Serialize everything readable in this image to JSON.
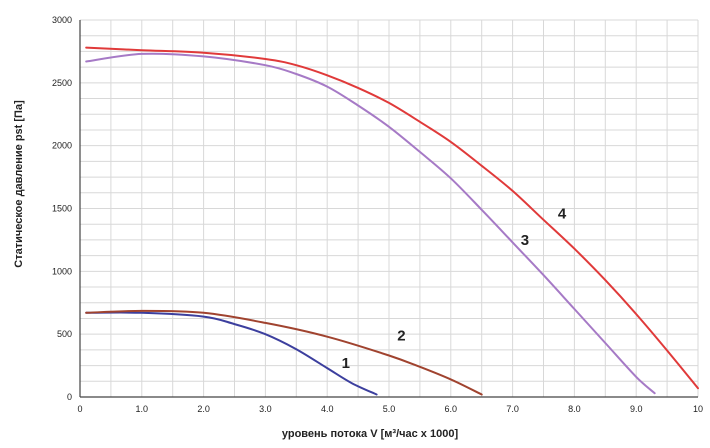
{
  "chart_data": {
    "type": "line",
    "xlabel": "уровень потока  V [м³/час х 1000]",
    "ylabel": "Статическое давление  pst [Па]",
    "xlim": [
      0,
      10
    ],
    "ylim": [
      0,
      3000
    ],
    "grid": true,
    "x_ticks": [
      "0",
      "1.0",
      "2.0",
      "3.0",
      "4.0",
      "5.0",
      "6.0",
      "7.0",
      "8.0",
      "9.0",
      "10"
    ],
    "y_ticks": [
      "0",
      "500",
      "1000",
      "1500",
      "2000",
      "2500",
      "3000"
    ],
    "series": [
      {
        "name": "1",
        "color": "#3c3f9e",
        "x": [
          0.1,
          1.0,
          2.0,
          2.5,
          3.0,
          3.5,
          4.0,
          4.4,
          4.8
        ],
        "y": [
          670,
          670,
          640,
          580,
          500,
          380,
          230,
          110,
          20
        ],
        "label_at": [
          4.3,
          230
        ]
      },
      {
        "name": "2",
        "color": "#a0432f",
        "x": [
          0.1,
          1.0,
          2.0,
          3.0,
          4.0,
          5.0,
          5.5,
          6.0,
          6.5
        ],
        "y": [
          670,
          685,
          670,
          590,
          480,
          330,
          240,
          140,
          20
        ],
        "label_at": [
          5.2,
          450
        ]
      },
      {
        "name": "3",
        "color": "#a67ac6",
        "x": [
          0.1,
          1.0,
          2.0,
          3.0,
          3.5,
          4.0,
          4.5,
          5.0,
          5.5,
          6.0,
          6.5,
          7.0,
          7.5,
          8.0,
          8.5,
          9.0,
          9.3
        ],
        "y": [
          2670,
          2730,
          2710,
          2640,
          2570,
          2470,
          2320,
          2150,
          1950,
          1740,
          1490,
          1230,
          970,
          700,
          430,
          160,
          30
        ],
        "label_at": [
          7.2,
          1210
        ]
      },
      {
        "name": "4",
        "color": "#e03a3a",
        "x": [
          0.1,
          1.0,
          2.0,
          3.0,
          3.5,
          4.0,
          4.5,
          5.0,
          5.5,
          6.0,
          6.5,
          7.0,
          7.5,
          8.0,
          8.5,
          9.0,
          9.5,
          10.0
        ],
        "y": [
          2780,
          2760,
          2740,
          2690,
          2640,
          2560,
          2460,
          2340,
          2190,
          2030,
          1840,
          1640,
          1410,
          1180,
          930,
          660,
          370,
          70
        ],
        "label_at": [
          7.8,
          1420
        ]
      }
    ]
  },
  "colors": {
    "grid": "#d8d8d8",
    "axis": "#444444",
    "tick_text": "#222222"
  }
}
